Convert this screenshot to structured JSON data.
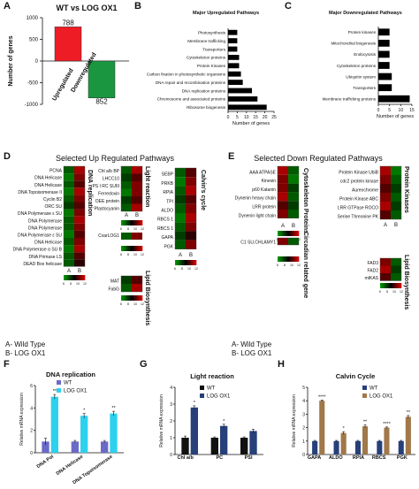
{
  "panel_letters": [
    "A",
    "B",
    "C",
    "D",
    "E",
    "F",
    "G",
    "H"
  ],
  "chart_data": [
    {
      "type": "bar",
      "panel": "A",
      "title": "WT vs LOG OX1",
      "categories": [
        "Upregulated",
        "Downregulated"
      ],
      "values": [
        788,
        -852
      ],
      "value_labels": [
        "788",
        "852"
      ],
      "ylabel": "Number of genes",
      "ylim": [
        -1000,
        1000
      ],
      "yticks": [
        "1000",
        "500",
        "0",
        "-500",
        "-1000"
      ],
      "colors": [
        "#ee1c25",
        "#1a9641"
      ]
    },
    {
      "type": "bar",
      "panel": "B",
      "orientation": "horizontal",
      "title": "Major Upregulated Pathways",
      "categories": [
        "Photosynthesis",
        "Membrane trafficking",
        "Transporters",
        "Cytoskeleton proteins",
        "Protein Kinases",
        "Carbon fixation in photosynthetic organisms",
        "DNA repair and recombination proteins",
        "DNA replication proteins",
        "Chromosome and associated proteins",
        "Ribosome biogenesis"
      ],
      "values": [
        5,
        5,
        5,
        6,
        6,
        7,
        8,
        13,
        16,
        21
      ],
      "xlabel": "Number of genes",
      "xlim": [
        0,
        25
      ],
      "xticks": [
        "0",
        "5",
        "10",
        "15",
        "20",
        "25"
      ],
      "color": "#000000"
    },
    {
      "type": "bar",
      "panel": "C",
      "orientation": "horizontal",
      "title": "Major Downregulated Pathways",
      "categories": [
        "Protein kinases",
        "Mitochondrial biogenesis",
        "Endocytosis",
        "Cytoskeleton proteins",
        "Ubiquitin system",
        "Transporters",
        "Membrane trafficking proteins"
      ],
      "values": [
        5,
        5,
        5,
        5,
        6,
        6,
        14
      ],
      "xlabel": "Number of genes",
      "xlim": [
        0,
        15
      ],
      "xticks": [
        "0",
        "5",
        "10",
        "15"
      ],
      "color": "#000000"
    },
    {
      "type": "heatmap",
      "panel": "D",
      "title": "Selected Up Regulated Pathways",
      "columns": [
        "A",
        "B"
      ],
      "colorbar_ticks": [
        "6",
        "8",
        "10",
        "12"
      ],
      "groups": [
        {
          "name": "DNA replication",
          "rows": [
            "PCNA",
            "DNA Helicase",
            "DNA Helicase",
            "DNA Topoisomerase II",
            "Cyclin B2",
            "ORC SU",
            "DNA Polymerase ε SU",
            "DNA Polymerase",
            "DNA Polymerase",
            "DNA Polymerase ε SU",
            "DNA Helicase",
            "DNA Polymerase α SU B",
            "DNA Primase LS",
            "DEAD Box helicase"
          ],
          "values": [
            [
              2,
              9
            ],
            [
              1,
              8
            ],
            [
              2,
              7
            ],
            [
              1,
              9
            ],
            [
              2,
              8
            ],
            [
              3,
              7
            ],
            [
              1,
              8
            ],
            [
              2,
              9
            ],
            [
              2,
              8
            ],
            [
              1,
              7
            ],
            [
              2,
              8
            ],
            [
              1,
              9
            ],
            [
              2,
              7
            ],
            [
              2,
              6
            ]
          ]
        },
        {
          "name": "Light reaction",
          "rows": [
            "Chl a/b BP",
            "LHCC10",
            "PS I RC SUIII",
            "Ferredoxin",
            "OEE protein",
            "Plastocyanin"
          ],
          "values": [
            [
              2,
              9
            ],
            [
              3,
              7
            ],
            [
              2,
              8
            ],
            [
              1,
              8
            ],
            [
              3,
              7
            ],
            [
              2,
              9
            ]
          ]
        },
        {
          "name": "Calvin's cycle",
          "rows": [
            "SEBP",
            "PRKB",
            "RPIA",
            "TPI",
            "ALDO",
            "RBCS 1",
            "RBCS 1",
            "GAPA",
            "PGK"
          ],
          "values": [
            [
              2,
              7
            ],
            [
              1,
              8
            ],
            [
              2,
              9
            ],
            [
              3,
              7
            ],
            [
              2,
              8
            ],
            [
              1,
              9
            ],
            [
              2,
              8
            ],
            [
              3,
              6
            ],
            [
              2,
              8
            ]
          ]
        },
        {
          "name": "Lipid Biosynthesis",
          "rows": [
            "CvarLOG1",
            "MAT",
            "FabG"
          ],
          "values": [
            [
              2,
              8
            ],
            [
              3,
              7
            ],
            [
              2,
              9
            ]
          ]
        }
      ]
    },
    {
      "type": "heatmap",
      "panel": "E",
      "title": "Selected Down Regulated Pathways",
      "columns": [
        "A",
        "B"
      ],
      "colorbar_ticks": [
        "6",
        "8",
        "10",
        "12"
      ],
      "groups": [
        {
          "name": "Cytoskeleton Proteins",
          "rows": [
            "AAA ATPASE",
            "Kinesin",
            "p60 Katanin",
            "Dynenin heavy chain",
            "LRR protein",
            "Dynenin light chain"
          ],
          "values": [
            [
              9,
              2
            ],
            [
              8,
              1
            ],
            [
              8,
              3
            ],
            [
              9,
              2
            ],
            [
              7,
              3
            ],
            [
              8,
              2
            ]
          ]
        },
        {
          "name": "Circadian related gene",
          "rows": [
            "C1 SU,CHLAMY1"
          ],
          "values": [
            [
              8,
              2
            ]
          ]
        },
        {
          "name": "Protein Kinases",
          "rows": [
            "Protein Kinase UbiB",
            "cdc2 protein kinase",
            "Aureochrome",
            "Protein Kinase ABC",
            "LRR GTPase ROCO",
            "Serine Threonine PK"
          ],
          "values": [
            [
              9,
              1
            ],
            [
              8,
              2
            ],
            [
              7,
              3
            ],
            [
              8,
              2
            ],
            [
              9,
              3
            ],
            [
              7,
              2
            ]
          ]
        },
        {
          "name": "Lipid Biosynthesis",
          "rows": [
            "FAD3",
            "FAD2",
            "mtKAS"
          ],
          "values": [
            [
              8,
              2
            ],
            [
              9,
              3
            ],
            [
              7,
              2
            ]
          ]
        }
      ]
    },
    {
      "type": "bar",
      "panel": "F",
      "title": "DNA replication",
      "categories": [
        "DNA Pol",
        "DNA Helicase",
        "DNA Topoisomerase"
      ],
      "series": [
        {
          "name": "WT",
          "values": [
            1,
            1,
            1
          ]
        },
        {
          "name": "LOG OX1",
          "values": [
            5,
            3.3,
            3.5
          ]
        }
      ],
      "errors": [
        [
          0.3,
          0.1,
          0.1
        ],
        [
          0.2,
          0.2,
          0.2
        ]
      ],
      "significance": [
        "**",
        "*",
        "**"
      ],
      "ylabel": "Relative mRNA expression",
      "ylim": [
        0,
        6
      ],
      "yticks": [
        "0",
        "2",
        "4",
        "6"
      ],
      "colors": [
        "#6a6ac8",
        "#2dd1ee"
      ]
    },
    {
      "type": "bar",
      "panel": "G",
      "title": "Light reaction",
      "categories": [
        "Chl a/b",
        "PC",
        "PSI"
      ],
      "series": [
        {
          "name": "WT",
          "values": [
            1,
            1,
            1
          ]
        },
        {
          "name": "LOG OX1",
          "values": [
            2.8,
            1.7,
            1.4
          ]
        }
      ],
      "errors": [
        [
          0.1,
          0.05,
          0.05
        ],
        [
          0.1,
          0.1,
          0.1
        ]
      ],
      "significance": [
        "*",
        "*",
        ""
      ],
      "ylabel": "Relative mRNA expression",
      "ylim": [
        0,
        4
      ],
      "yticks": [
        "0",
        "1",
        "2",
        "3",
        "4"
      ],
      "colors": [
        "#111111",
        "#27407a"
      ]
    },
    {
      "type": "bar",
      "panel": "H",
      "title": "Calvin Cycle",
      "categories": [
        "GAPA",
        "ALDO",
        "RPIA",
        "RBCS",
        "PGK"
      ],
      "series": [
        {
          "name": "WT",
          "values": [
            1,
            1,
            1,
            1,
            1
          ]
        },
        {
          "name": "LOG OX1",
          "values": [
            4,
            1.6,
            2.1,
            2,
            2.8
          ]
        }
      ],
      "errors": [
        [
          0.05,
          0.05,
          0.05,
          0.05,
          0.05
        ],
        [
          0.05,
          0.1,
          0.1,
          0.05,
          0.1
        ]
      ],
      "significance": [
        "****",
        "*",
        "**",
        "****",
        "**"
      ],
      "ylabel": "Relative mRNA expression",
      "ylim": [
        0,
        5
      ],
      "yticks": [
        "0",
        "1",
        "2",
        "3",
        "4",
        "5"
      ],
      "colors": [
        "#27407a",
        "#a0784a"
      ]
    }
  ],
  "heat_legend_lines": [
    "A- Wild Type",
    "B- LOG OX1"
  ]
}
